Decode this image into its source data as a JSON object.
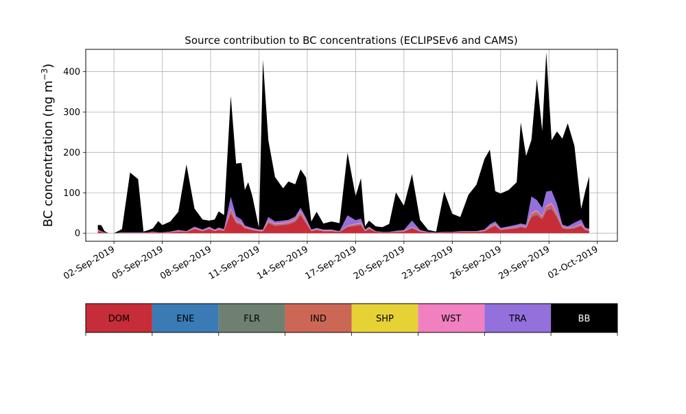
{
  "chart_data": {
    "type": "area",
    "stacked": true,
    "title": "Source contribution to BC concentrations (ECLIPSEv6 and CAMS)",
    "xlabel": "",
    "ylabel": "BC concentration (ng m",
    "ylabel_sup": "−3",
    "ylabel_close": ")",
    "grid": true,
    "xlim": [
      "2019-08-31T06:00",
      "2019-10-03T06:00"
    ],
    "ylim": [
      -20,
      455
    ],
    "y_ticks": [
      0,
      100,
      200,
      300,
      400
    ],
    "x_ticks": [
      "02-Sep-2019",
      "05-Sep-2019",
      "08-Sep-2019",
      "11-Sep-2019",
      "14-Sep-2019",
      "17-Sep-2019",
      "20-Sep-2019",
      "23-Sep-2019",
      "26-Sep-2019",
      "29-Sep-2019",
      "02-Oct-2019"
    ],
    "x_tick_dates": [
      "2019-09-02",
      "2019-09-05",
      "2019-09-08",
      "2019-09-11",
      "2019-09-14",
      "2019-09-17",
      "2019-09-20",
      "2019-09-23",
      "2019-09-26",
      "2019-09-29",
      "2019-10-02"
    ],
    "legend_placement": "below",
    "legend": [
      {
        "name": "DOM",
        "color": "#c62d38"
      },
      {
        "name": "ENE",
        "color": "#3a7bb5"
      },
      {
        "name": "FLR",
        "color": "#6e8170"
      },
      {
        "name": "IND",
        "color": "#cc6655"
      },
      {
        "name": "SHP",
        "color": "#e6d234"
      },
      {
        "name": "WST",
        "color": "#f080c0"
      },
      {
        "name": "TRA",
        "color": "#9370db"
      },
      {
        "name": "BB",
        "color": "#000000"
      }
    ],
    "x": [
      "2019-09-01T00:00",
      "2019-09-01T05:00",
      "2019-09-01T10:00",
      "2019-09-01T16:00",
      "2019-09-02T00:00",
      "2019-09-02T12:00",
      "2019-09-03T00:00",
      "2019-09-03T12:00",
      "2019-09-03T20:00",
      "2019-09-04T02:00",
      "2019-09-04T10:00",
      "2019-09-04T18:00",
      "2019-09-05T00:00",
      "2019-09-05T12:00",
      "2019-09-06T00:00",
      "2019-09-06T12:00",
      "2019-09-07T00:00",
      "2019-09-07T12:00",
      "2019-09-07T22:00",
      "2019-09-08T06:00",
      "2019-09-08T12:00",
      "2019-09-08T20:00",
      "2019-09-09T06:00",
      "2019-09-09T14:00",
      "2019-09-09T22:00",
      "2019-09-10T03:00",
      "2019-09-10T08:00",
      "2019-09-10T14:00",
      "2019-09-11T00:00",
      "2019-09-11T06:00",
      "2019-09-11T14:00",
      "2019-09-12T00:00",
      "2019-09-12T12:00",
      "2019-09-12T20:00",
      "2019-09-13T06:00",
      "2019-09-13T14:00",
      "2019-09-13T22:00",
      "2019-09-14T06:00",
      "2019-09-14T14:00",
      "2019-09-15T00:00",
      "2019-09-15T12:00",
      "2019-09-16T00:00",
      "2019-09-16T12:00",
      "2019-09-17T00:00",
      "2019-09-17T08:00",
      "2019-09-17T14:00",
      "2019-09-17T20:00",
      "2019-09-18T06:00",
      "2019-09-18T16:00",
      "2019-09-19T02:00",
      "2019-09-19T12:00",
      "2019-09-20T00:00",
      "2019-09-20T12:00",
      "2019-09-21T00:00",
      "2019-09-21T12:00",
      "2019-09-22T00:00",
      "2019-09-22T12:00",
      "2019-09-23T00:00",
      "2019-09-23T12:00",
      "2019-09-24T00:00",
      "2019-09-24T12:00",
      "2019-09-25T00:00",
      "2019-09-25T08:00",
      "2019-09-25T16:00",
      "2019-09-26T00:00",
      "2019-09-26T12:00",
      "2019-09-27T00:00",
      "2019-09-27T06:00",
      "2019-09-27T14:00",
      "2019-09-27T22:00",
      "2019-09-28T06:00",
      "2019-09-28T14:00",
      "2019-09-28T20:00",
      "2019-09-29T04:00",
      "2019-09-29T12:00",
      "2019-09-29T20:00",
      "2019-09-30T04:00",
      "2019-09-30T14:00",
      "2019-10-01T00:00",
      "2019-10-01T06:00",
      "2019-10-01T12:00"
    ],
    "series": [
      {
        "name": "DOM",
        "values": [
          5,
          3,
          1,
          0,
          0,
          1,
          1,
          1,
          1,
          1,
          2,
          1,
          1,
          2,
          4,
          3,
          10,
          5,
          10,
          5,
          8,
          6,
          50,
          25,
          20,
          12,
          10,
          8,
          5,
          5,
          25,
          18,
          20,
          22,
          28,
          45,
          25,
          5,
          8,
          5,
          5,
          3,
          15,
          18,
          20,
          5,
          10,
          3,
          2,
          2,
          3,
          4,
          12,
          4,
          2,
          1,
          2,
          2,
          3,
          3,
          3,
          5,
          12,
          18,
          8,
          10,
          12,
          15,
          12,
          40,
          45,
          35,
          55,
          60,
          40,
          12,
          10,
          12,
          18,
          8,
          6
        ]
      },
      {
        "name": "ENE",
        "values": [
          0,
          0,
          0,
          0,
          0,
          0,
          0,
          0,
          0,
          0,
          0,
          0,
          0,
          0,
          0,
          0,
          0,
          0,
          0,
          0,
          0,
          0,
          1,
          1,
          1,
          0,
          0,
          0,
          0,
          0,
          1,
          1,
          1,
          1,
          1,
          1,
          1,
          0,
          0,
          0,
          0,
          0,
          1,
          1,
          1,
          0,
          0,
          0,
          0,
          0,
          0,
          0,
          1,
          0,
          0,
          0,
          0,
          0,
          0,
          0,
          0,
          0,
          1,
          1,
          0,
          0,
          1,
          1,
          1,
          2,
          2,
          1,
          2,
          2,
          1,
          1,
          0,
          1,
          1,
          0,
          0
        ]
      },
      {
        "name": "FLR",
        "values": [
          0,
          0,
          0,
          0,
          0,
          0,
          0,
          0,
          0,
          0,
          0,
          0,
          0,
          0,
          0,
          0,
          0,
          0,
          0,
          0,
          0,
          0,
          0,
          0,
          0,
          0,
          0,
          0,
          0,
          0,
          0,
          0,
          0,
          0,
          0,
          0,
          0,
          0,
          0,
          0,
          0,
          0,
          0,
          0,
          0,
          0,
          0,
          0,
          0,
          0,
          0,
          0,
          0,
          0,
          0,
          0,
          0,
          0,
          0,
          0,
          0,
          0,
          0,
          0,
          0,
          0,
          0,
          0,
          0,
          0,
          0,
          0,
          0,
          0,
          0,
          0,
          0,
          0,
          0,
          0,
          0
        ]
      },
      {
        "name": "IND",
        "values": [
          1,
          1,
          0,
          0,
          0,
          0,
          0,
          0,
          0,
          0,
          1,
          0,
          0,
          1,
          1,
          1,
          2,
          1,
          2,
          1,
          2,
          1,
          8,
          4,
          3,
          2,
          2,
          1,
          1,
          1,
          4,
          3,
          3,
          3,
          4,
          6,
          4,
          1,
          1,
          1,
          1,
          1,
          2,
          3,
          3,
          1,
          2,
          1,
          0,
          0,
          1,
          1,
          2,
          1,
          0,
          0,
          0,
          0,
          1,
          1,
          1,
          1,
          2,
          3,
          1,
          2,
          2,
          2,
          2,
          6,
          7,
          5,
          8,
          9,
          6,
          2,
          2,
          2,
          3,
          1,
          1
        ]
      },
      {
        "name": "SHP",
        "values": [
          0,
          0,
          0,
          0,
          0,
          0,
          0,
          0,
          0,
          0,
          0,
          0,
          0,
          0,
          0,
          0,
          0,
          0,
          0,
          0,
          0,
          0,
          0,
          0,
          0,
          0,
          0,
          0,
          0,
          0,
          0,
          0,
          0,
          0,
          0,
          0,
          0,
          0,
          0,
          0,
          0,
          0,
          0,
          0,
          0,
          0,
          0,
          0,
          0,
          0,
          0,
          0,
          0,
          0,
          0,
          0,
          0,
          0,
          0,
          0,
          0,
          0,
          0,
          0,
          0,
          0,
          0,
          0,
          0,
          0,
          0,
          0,
          0,
          0,
          0,
          0,
          0,
          0,
          0,
          0,
          0
        ]
      },
      {
        "name": "WST",
        "values": [
          1,
          0,
          0,
          0,
          0,
          0,
          0,
          0,
          0,
          0,
          0,
          0,
          0,
          0,
          1,
          0,
          1,
          1,
          1,
          1,
          1,
          1,
          3,
          2,
          2,
          1,
          1,
          1,
          1,
          1,
          2,
          2,
          2,
          2,
          2,
          3,
          2,
          1,
          1,
          1,
          1,
          0,
          1,
          2,
          2,
          1,
          1,
          0,
          0,
          0,
          0,
          1,
          1,
          1,
          0,
          0,
          0,
          0,
          0,
          0,
          0,
          1,
          1,
          2,
          1,
          1,
          1,
          1,
          1,
          3,
          3,
          2,
          3,
          4,
          3,
          1,
          1,
          1,
          2,
          1,
          1
        ]
      },
      {
        "name": "TRA",
        "values": [
          2,
          1,
          1,
          0,
          0,
          1,
          1,
          1,
          1,
          1,
          1,
          1,
          1,
          1,
          2,
          1,
          3,
          2,
          3,
          2,
          3,
          2,
          28,
          10,
          8,
          4,
          3,
          3,
          2,
          2,
          8,
          5,
          5,
          5,
          6,
          8,
          6,
          2,
          3,
          2,
          2,
          1,
          25,
          8,
          10,
          2,
          3,
          1,
          1,
          1,
          2,
          2,
          15,
          2,
          1,
          1,
          1,
          1,
          1,
          1,
          1,
          2,
          6,
          5,
          3,
          4,
          5,
          5,
          5,
          40,
          25,
          20,
          35,
          30,
          22,
          5,
          4,
          10,
          10,
          4,
          3
        ]
      },
      {
        "name": "BB",
        "values": [
          11,
          15,
          3,
          0,
          0,
          8,
          148,
          132,
          2,
          5,
          8,
          28,
          18,
          25,
          45,
          165,
          45,
          25,
          15,
          25,
          40,
          35,
          250,
          130,
          140,
          88,
          110,
          80,
          4,
          420,
          190,
          110,
          80,
          95,
          80,
          95,
          100,
          20,
          40,
          15,
          20,
          20,
          155,
          60,
          100,
          8,
          15,
          12,
          12,
          20,
          95,
          60,
          115,
          25,
          5,
          2,
          100,
          45,
          35,
          90,
          115,
          175,
          185,
          75,
          85,
          90,
          105,
          250,
          170,
          140,
          300,
          190,
          345,
          125,
          180,
          213,
          255,
          190,
          26,
          89,
          130
        ]
      }
    ]
  }
}
